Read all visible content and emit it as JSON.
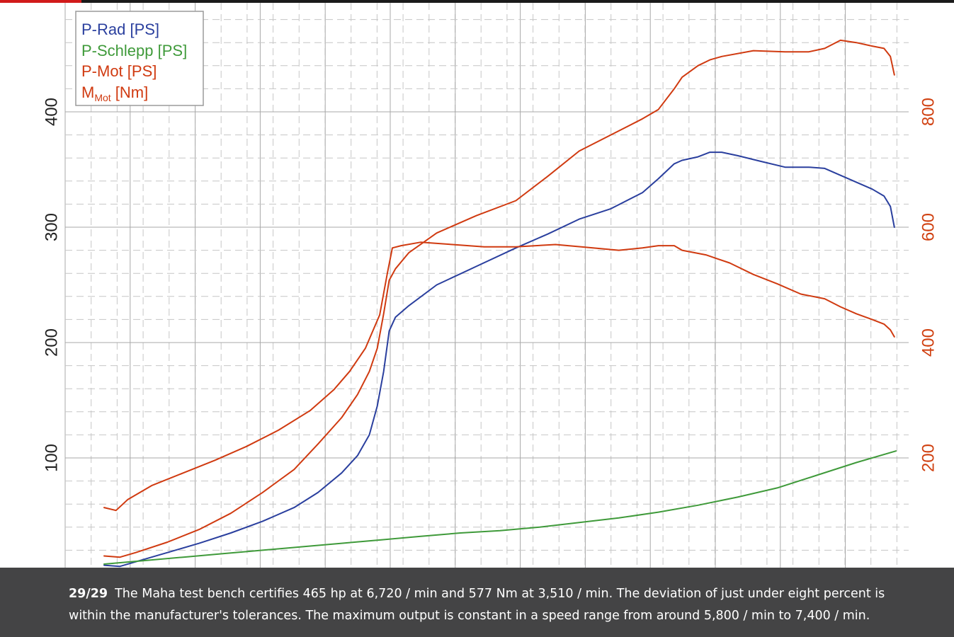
{
  "caption": {
    "counter": "29/29",
    "text": "The Maha test bench certifies 465 hp at 6,720 / min and 577 Nm at 3,510 / min. The deviation of just under eight percent is within the manufacturer's tolerances. The maximum output is constant in a speed range from around 5,800 / min to 7,400 / min."
  },
  "colors": {
    "p_rad": "#2a3f9e",
    "p_schlepp": "#3f9a3a",
    "p_mot": "#d03a10",
    "m_mot": "#d03a10",
    "right_axis": "#d04010"
  },
  "chart_data": {
    "type": "line",
    "title": "",
    "x_axis": {
      "label": "",
      "tick_labels": [],
      "range": [
        0,
        100
      ]
    },
    "y_axis_left": {
      "label": "",
      "ticks": [
        100,
        200,
        300,
        400
      ],
      "range": [
        0,
        500
      ]
    },
    "y_axis_right": {
      "label": "",
      "ticks": [
        200,
        400,
        600,
        800
      ],
      "range": [
        0,
        1000
      ]
    },
    "grid": true,
    "legend": {
      "position": "top-left",
      "entries": [
        {
          "name": "P-Rad [PS]",
          "color": "#2a3f9e"
        },
        {
          "name": "P-Schlepp [PS]",
          "color": "#3f9a3a"
        },
        {
          "name": "P-Mot [PS]",
          "color": "#d03a10"
        },
        {
          "name_main": "M",
          "name_sub": "Mot",
          "name_unit": " [Nm]",
          "color": "#d03a10"
        }
      ]
    },
    "series": [
      {
        "name": "P-Rad [PS]",
        "axis": "left",
        "color": "#2a3f9e",
        "points": [
          [
            0,
            7
          ],
          [
            2,
            6
          ],
          [
            4,
            10
          ],
          [
            8,
            18
          ],
          [
            12,
            26
          ],
          [
            16,
            35
          ],
          [
            20,
            45
          ],
          [
            24,
            57
          ],
          [
            27,
            70
          ],
          [
            30,
            87
          ],
          [
            32,
            102
          ],
          [
            33.5,
            120
          ],
          [
            34.5,
            145
          ],
          [
            35.3,
            175
          ],
          [
            36,
            210
          ],
          [
            36.8,
            222
          ],
          [
            38.5,
            232
          ],
          [
            42,
            250
          ],
          [
            47,
            266
          ],
          [
            52,
            282
          ],
          [
            56,
            294
          ],
          [
            60,
            307
          ],
          [
            64,
            316
          ],
          [
            68,
            330
          ],
          [
            70,
            342
          ],
          [
            72,
            355
          ],
          [
            73,
            358
          ],
          [
            75,
            361
          ],
          [
            76.5,
            365
          ],
          [
            78,
            365
          ],
          [
            80,
            362
          ],
          [
            83,
            357
          ],
          [
            86,
            352
          ],
          [
            89,
            352
          ],
          [
            91,
            351
          ],
          [
            93,
            345
          ],
          [
            95,
            339
          ],
          [
            97,
            333
          ],
          [
            98.5,
            327
          ],
          [
            99.3,
            318
          ],
          [
            99.8,
            300
          ]
        ]
      },
      {
        "name": "P-Schlepp [PS]",
        "axis": "left",
        "color": "#3f9a3a",
        "points": [
          [
            0,
            8
          ],
          [
            5,
            11
          ],
          [
            10,
            14
          ],
          [
            15,
            17
          ],
          [
            20,
            20
          ],
          [
            25,
            23
          ],
          [
            30,
            26
          ],
          [
            35,
            29
          ],
          [
            40,
            32
          ],
          [
            45,
            35
          ],
          [
            50,
            37
          ],
          [
            55,
            40
          ],
          [
            60,
            44
          ],
          [
            65,
            48
          ],
          [
            70,
            53
          ],
          [
            75,
            59
          ],
          [
            80,
            66
          ],
          [
            85,
            74
          ],
          [
            90,
            85
          ],
          [
            95,
            96
          ],
          [
            100,
            106
          ]
        ]
      },
      {
        "name": "P-Mot [PS]",
        "axis": "left",
        "color": "#d03a10",
        "points": [
          [
            0,
            15
          ],
          [
            2,
            14
          ],
          [
            4,
            18
          ],
          [
            8,
            27
          ],
          [
            12,
            38
          ],
          [
            16,
            52
          ],
          [
            20,
            70
          ],
          [
            24,
            90
          ],
          [
            27,
            112
          ],
          [
            30,
            135
          ],
          [
            32,
            155
          ],
          [
            33.5,
            175
          ],
          [
            34.5,
            195
          ],
          [
            35.3,
            225
          ],
          [
            36,
            254
          ],
          [
            36.8,
            264
          ],
          [
            38.5,
            278
          ],
          [
            42,
            295
          ],
          [
            47,
            310
          ],
          [
            52,
            323
          ],
          [
            56,
            344
          ],
          [
            60,
            366
          ],
          [
            64,
            380
          ],
          [
            68,
            394
          ],
          [
            70,
            402
          ],
          [
            72,
            420
          ],
          [
            73,
            430
          ],
          [
            75,
            440
          ],
          [
            76.5,
            445
          ],
          [
            78,
            448
          ],
          [
            82,
            453
          ],
          [
            86,
            452
          ],
          [
            89,
            452
          ],
          [
            91,
            455
          ],
          [
            93,
            462
          ],
          [
            95,
            460
          ],
          [
            97,
            457
          ],
          [
            98.5,
            455
          ],
          [
            99.3,
            448
          ],
          [
            99.8,
            432
          ]
        ]
      },
      {
        "name": "M_Mot [Nm]",
        "axis": "right",
        "color": "#d03a10",
        "points": [
          [
            0,
            114
          ],
          [
            1.5,
            109
          ],
          [
            3,
            128
          ],
          [
            6,
            152
          ],
          [
            10,
            174
          ],
          [
            14,
            196
          ],
          [
            18,
            220
          ],
          [
            22,
            248
          ],
          [
            26,
            282
          ],
          [
            29,
            318
          ],
          [
            31,
            350
          ],
          [
            33,
            390
          ],
          [
            34.8,
            448
          ],
          [
            35.8,
            522
          ],
          [
            36.4,
            564
          ],
          [
            37.5,
            568
          ],
          [
            40,
            574
          ],
          [
            44,
            570
          ],
          [
            48,
            566
          ],
          [
            52,
            566
          ],
          [
            57,
            570
          ],
          [
            61,
            565
          ],
          [
            65,
            560
          ],
          [
            68,
            564
          ],
          [
            70,
            568
          ],
          [
            72,
            568
          ],
          [
            73,
            560
          ],
          [
            76,
            552
          ],
          [
            79,
            538
          ],
          [
            82,
            518
          ],
          [
            85,
            502
          ],
          [
            88,
            484
          ],
          [
            91,
            476
          ],
          [
            93,
            462
          ],
          [
            95,
            450
          ],
          [
            97,
            440
          ],
          [
            98.5,
            432
          ],
          [
            99.3,
            422
          ],
          [
            99.8,
            410
          ]
        ]
      }
    ]
  }
}
